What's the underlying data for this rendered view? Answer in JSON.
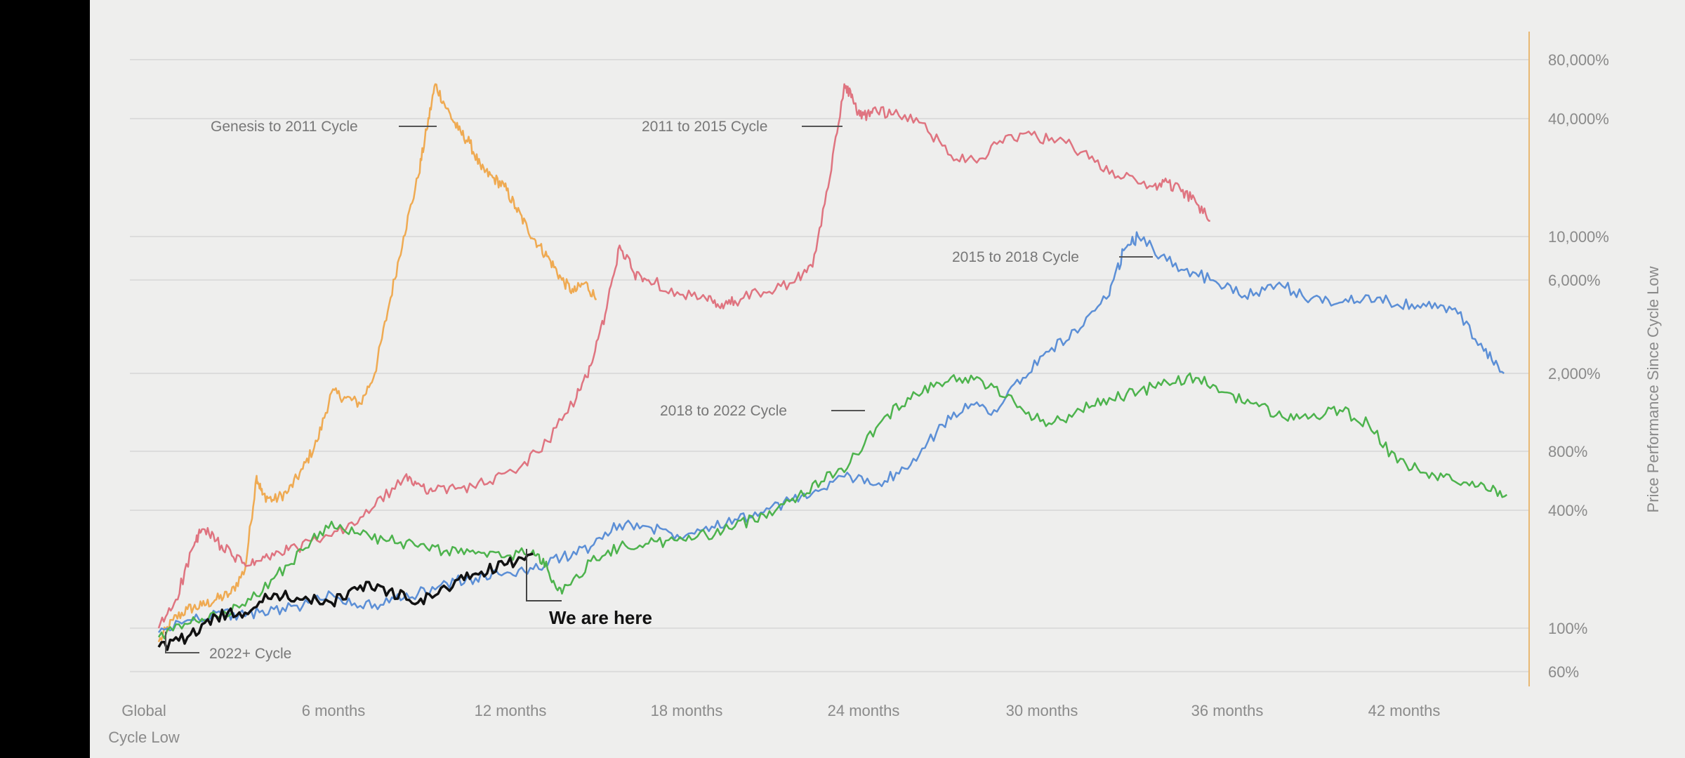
{
  "chart_data": {
    "type": "line",
    "title": "",
    "y_scale": "log",
    "ylabel": "Price Performance Since Cycle Low",
    "x_ticks": [
      "Global Cycle Low",
      "6 months",
      "12 months",
      "18 months",
      "24 months",
      "30 months",
      "36 months",
      "42 months"
    ],
    "y_ticks": [
      {
        "value": 60,
        "label": "60%"
      },
      {
        "value": 100,
        "label": "100%"
      },
      {
        "value": 400,
        "label": "400%"
      },
      {
        "value": 800,
        "label": "800%"
      },
      {
        "value": 2000,
        "label": "2,000%"
      },
      {
        "value": 6000,
        "label": "6,000%"
      },
      {
        "value": 10000,
        "label": "10,000%"
      },
      {
        "value": 40000,
        "label": "40,000%"
      },
      {
        "value": 80000,
        "label": "80,000%"
      }
    ],
    "ylim": [
      50,
      80000
    ],
    "xlim": [
      -1,
      47.5
    ],
    "grid": true,
    "axis_color": "#e8b873",
    "series": [
      {
        "name": "Genesis to 2011 Cycle",
        "color": "#efaa52",
        "x": [
          0,
          0.5,
          1,
          1.5,
          2,
          2.5,
          3,
          3.4,
          3.6,
          4,
          4.5,
          5,
          5.5,
          6,
          6.5,
          7,
          7.5,
          8,
          8.5,
          9,
          9.3,
          9.6,
          10,
          10.4,
          10.8,
          11.2,
          11.6,
          12,
          12.4,
          12.8,
          13.2,
          13.6,
          14,
          14.4,
          14.8,
          15.2
        ],
        "y": [
          85,
          110,
          125,
          130,
          140,
          150,
          200,
          600,
          480,
          450,
          500,
          650,
          900,
          1600,
          1500,
          1400,
          2000,
          4500,
          10000,
          20000,
          35000,
          60000,
          45000,
          35000,
          30000,
          22000,
          20000,
          18000,
          14000,
          11000,
          9000,
          7500,
          6000,
          5200,
          5800,
          4800
        ]
      },
      {
        "name": "2011 to 2015 Cycle",
        "color": "#df7480",
        "x": [
          0,
          0.6,
          1.2,
          1.5,
          2,
          2.6,
          3.2,
          3.8,
          4.5,
          5.5,
          6.5,
          7.5,
          8.5,
          9,
          9.5,
          10.5,
          11.5,
          12.5,
          13.5,
          14.5,
          15,
          15.5,
          16,
          16.5,
          17,
          18,
          19,
          19.5,
          20,
          21,
          22,
          22.7,
          23.3,
          23.8,
          24.1,
          24.4,
          24.8,
          25.5,
          26.5,
          27.5,
          28.5,
          29.5,
          30.5,
          31.5,
          32.5,
          33.5,
          34.5,
          35,
          35.5,
          36,
          36.5
        ],
        "y": [
          100,
          140,
          260,
          320,
          280,
          230,
          210,
          230,
          250,
          280,
          320,
          420,
          580,
          550,
          500,
          520,
          560,
          650,
          900,
          1500,
          2200,
          4000,
          9000,
          6500,
          6000,
          5200,
          4800,
          4300,
          4700,
          5200,
          5800,
          7000,
          20000,
          60000,
          50000,
          40000,
          45000,
          42000,
          38000,
          26000,
          25000,
          33000,
          32000,
          30000,
          24000,
          20000,
          18000,
          19000,
          17000,
          15000,
          12000
        ]
      },
      {
        "name": "2015 to 2018 Cycle",
        "color": "#5c8fd6",
        "x": [
          0,
          1,
          2,
          3,
          4,
          5,
          6,
          7,
          8,
          9,
          10,
          11,
          12,
          13,
          14,
          15,
          16,
          17,
          18,
          19,
          20,
          21,
          22,
          23,
          24,
          25,
          26,
          27,
          28,
          29,
          30,
          31,
          32,
          33,
          33.5,
          34,
          35,
          36,
          37,
          38,
          39,
          40,
          41,
          42,
          43,
          44,
          45,
          46,
          46.7
        ],
        "y": [
          95,
          110,
          120,
          115,
          125,
          130,
          150,
          130,
          135,
          150,
          170,
          180,
          190,
          200,
          230,
          260,
          340,
          330,
          300,
          330,
          360,
          390,
          450,
          510,
          600,
          550,
          650,
          1000,
          1400,
          1300,
          1900,
          2700,
          3400,
          5000,
          8500,
          10000,
          7500,
          6500,
          5500,
          5000,
          5600,
          4800,
          4600,
          5000,
          4500,
          4400,
          4300,
          2600,
          2000
        ]
      },
      {
        "name": "2018 to 2022 Cycle",
        "color": "#4db34d",
        "x": [
          0,
          1,
          2,
          3,
          4,
          5,
          6,
          7,
          8,
          9,
          10,
          11,
          12,
          13,
          13.5,
          14,
          15,
          16,
          17,
          18,
          19,
          20,
          21,
          22,
          23,
          24,
          25,
          26,
          27,
          28,
          29,
          30,
          31,
          32,
          33,
          34,
          35,
          36,
          37,
          38,
          39,
          40,
          41,
          42,
          43,
          44,
          45,
          46,
          46.8
        ],
        "y": [
          90,
          105,
          115,
          130,
          180,
          250,
          350,
          300,
          280,
          260,
          250,
          240,
          230,
          250,
          200,
          150,
          220,
          260,
          270,
          280,
          300,
          330,
          380,
          460,
          560,
          700,
          1100,
          1500,
          1800,
          1900,
          1700,
          1300,
          1100,
          1300,
          1500,
          1600,
          1800,
          1900,
          1600,
          1400,
          1200,
          1200,
          1300,
          1100,
          700,
          620,
          560,
          540,
          480
        ]
      },
      {
        "name": "2022+ Cycle",
        "color": "#111111",
        "x": [
          0,
          1,
          2,
          3,
          4,
          5,
          6,
          7,
          8,
          9,
          10,
          11,
          12,
          13
        ],
        "y": [
          80,
          90,
          115,
          120,
          150,
          140,
          135,
          165,
          155,
          135,
          160,
          190,
          210,
          240
        ]
      }
    ]
  },
  "annotations": {
    "genesis": "Genesis to 2011 Cycle",
    "c2011": "2011 to 2015 Cycle",
    "c2015": "2015 to 2018 Cycle",
    "c2018": "2018 to 2022 Cycle",
    "c2022": "2022+ Cycle",
    "here": "We are here"
  }
}
